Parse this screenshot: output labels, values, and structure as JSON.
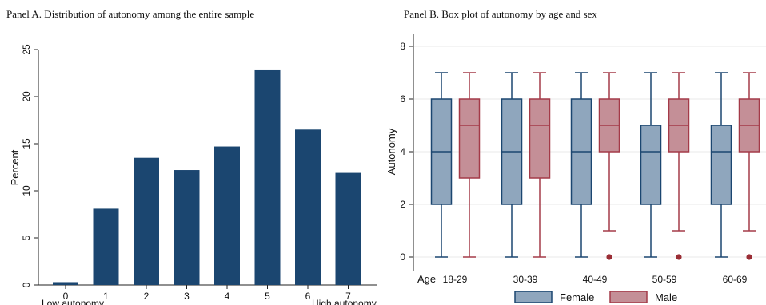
{
  "colors": {
    "bar": "#1b4670",
    "axis": "#222222",
    "female_fill": "#8fa6bd",
    "female_stroke": "#1b4670",
    "male_fill": "#c48f97",
    "male_stroke": "#a43a48",
    "outlier": "#9a2d35",
    "grid": "#e9e9e9"
  },
  "chart_data": [
    {
      "type": "bar",
      "panel_title": "Panel A. Distribution of autonomy among the entire sample",
      "categories": [
        "0",
        "1",
        "2",
        "3",
        "4",
        "5",
        "6",
        "7"
      ],
      "values": [
        0.3,
        8.1,
        13.5,
        12.2,
        14.7,
        22.8,
        16.5,
        11.9
      ],
      "ylabel": "Percent",
      "ylim": [
        0,
        25
      ],
      "yticks": [
        "0",
        "5",
        "10",
        "15",
        "20",
        "25"
      ],
      "xnote_low": "Low autonomy",
      "xnote_high": "High autonomy",
      "grid": false
    },
    {
      "type": "box",
      "panel_title": "Panel B. Box plot of autonomy by age and sex",
      "ylabel": "Autonomy",
      "ylim": [
        0,
        8
      ],
      "yticks": [
        "0",
        "2",
        "4",
        "6",
        "8"
      ],
      "group_label": "Age",
      "groups": [
        "18-29",
        "30-39",
        "40-49",
        "50-59",
        "60-69"
      ],
      "grid": true,
      "legend_position": "bottom",
      "series": [
        {
          "name": "Female",
          "boxes": [
            {
              "min": 0,
              "q1": 2,
              "median": 4,
              "q3": 6,
              "max": 7,
              "outliers": []
            },
            {
              "min": 0,
              "q1": 2,
              "median": 4,
              "q3": 6,
              "max": 7,
              "outliers": []
            },
            {
              "min": 0,
              "q1": 2,
              "median": 4,
              "q3": 6,
              "max": 7,
              "outliers": []
            },
            {
              "min": 0,
              "q1": 2,
              "median": 4,
              "q3": 5,
              "max": 7,
              "outliers": []
            },
            {
              "min": 0,
              "q1": 2,
              "median": 4,
              "q3": 5,
              "max": 7,
              "outliers": []
            }
          ]
        },
        {
          "name": "Male",
          "boxes": [
            {
              "min": 0,
              "q1": 3,
              "median": 5,
              "q3": 6,
              "max": 7,
              "outliers": []
            },
            {
              "min": 0,
              "q1": 3,
              "median": 5,
              "q3": 6,
              "max": 7,
              "outliers": []
            },
            {
              "min": 1,
              "q1": 4,
              "median": 5,
              "q3": 6,
              "max": 7,
              "outliers": [
                0
              ]
            },
            {
              "min": 1,
              "q1": 4,
              "median": 5,
              "q3": 6,
              "max": 7,
              "outliers": [
                0
              ]
            },
            {
              "min": 1,
              "q1": 4,
              "median": 5,
              "q3": 6,
              "max": 7,
              "outliers": [
                0
              ]
            }
          ]
        }
      ]
    }
  ]
}
